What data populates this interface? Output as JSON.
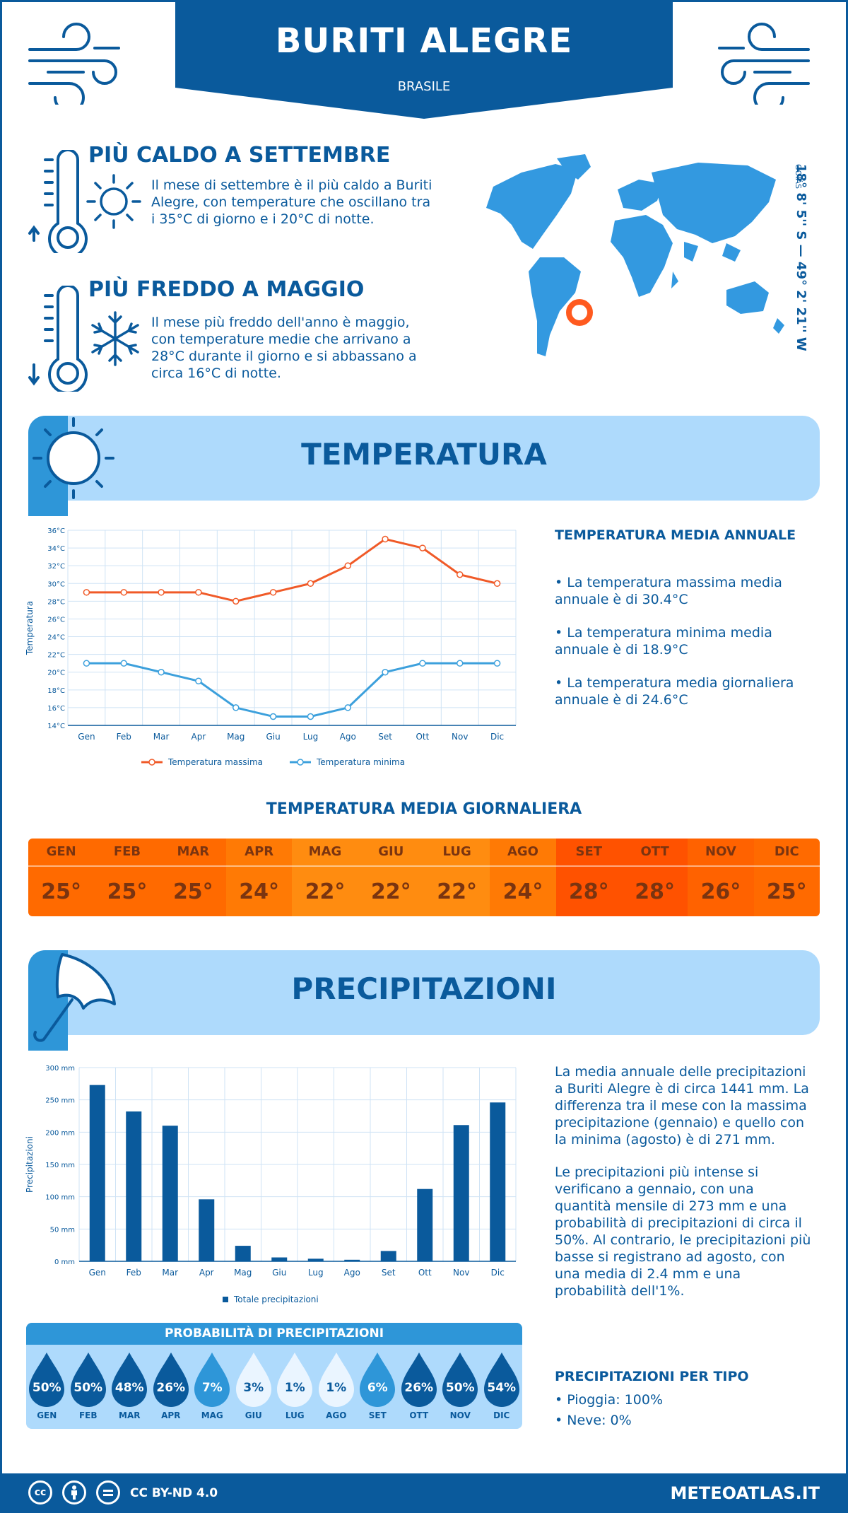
{
  "header": {
    "city": "BURITI ALEGRE",
    "country": "BRASILE"
  },
  "coords": {
    "text": "18° 8' 5'' S — 49° 2' 21'' W",
    "region": "GOIÁS"
  },
  "warmest": {
    "title": "PIÙ CALDO A SETTEMBRE",
    "text": "Il mese di settembre è il più caldo a Buriti Alegre, con temperature che oscillano tra i 35°C di giorno e i 20°C di notte."
  },
  "coldest": {
    "title": "PIÙ FREDDO A MAGGIO",
    "text": "Il mese più freddo dell'anno è maggio, con temperature medie che arrivano a 28°C durante il giorno e si abbassano a circa 16°C di notte."
  },
  "temperature": {
    "section_title": "TEMPERATURA",
    "annual_title": "TEMPERATURA MEDIA ANNUALE",
    "bullets": [
      "• La temperatura massima media annuale è di 30.4°C",
      "• La temperatura minima media annuale è di 18.9°C",
      "• La temperatura media giornaliera annuale è di 24.6°C"
    ],
    "daily_title": "TEMPERATURA MEDIA GIORNALIERA",
    "daily": [
      {
        "m": "GEN",
        "v": "25°",
        "c": "#ff6a00"
      },
      {
        "m": "FEB",
        "v": "25°",
        "c": "#ff6a00"
      },
      {
        "m": "MAR",
        "v": "25°",
        "c": "#ff6a00"
      },
      {
        "m": "APR",
        "v": "24°",
        "c": "#ff7a05"
      },
      {
        "m": "MAG",
        "v": "22°",
        "c": "#ff8c10"
      },
      {
        "m": "GIU",
        "v": "22°",
        "c": "#ff8c10"
      },
      {
        "m": "LUG",
        "v": "22°",
        "c": "#ff8c10"
      },
      {
        "m": "AGO",
        "v": "24°",
        "c": "#ff7a05"
      },
      {
        "m": "SET",
        "v": "28°",
        "c": "#ff5200"
      },
      {
        "m": "OTT",
        "v": "28°",
        "c": "#ff5200"
      },
      {
        "m": "NOV",
        "v": "26°",
        "c": "#ff6200"
      },
      {
        "m": "DIC",
        "v": "25°",
        "c": "#ff6a00"
      }
    ]
  },
  "precipitation": {
    "section_title": "PRECIPITAZIONI",
    "p1": "La media annuale delle precipitazioni a Buriti Alegre è di circa 1441 mm. La differenza tra il mese con la massima precipitazione (gennaio) e quello con la minima (agosto) è di 271 mm.",
    "p2": "Le precipitazioni più intense si verificano a gennaio, con una quantità mensile di 273 mm e una probabilità di precipitazioni di circa il 50%. Al contrario, le precipitazioni più basse si registrano ad agosto, con una media di 2.4 mm e una probabilità dell'1%.",
    "prob_title": "PROBABILITÀ DI PRECIPITAZIONI",
    "prob": [
      {
        "m": "GEN",
        "v": "50%",
        "p": 50
      },
      {
        "m": "FEB",
        "v": "50%",
        "p": 50
      },
      {
        "m": "MAR",
        "v": "48%",
        "p": 48
      },
      {
        "m": "APR",
        "v": "26%",
        "p": 26
      },
      {
        "m": "MAG",
        "v": "7%",
        "p": 7
      },
      {
        "m": "GIU",
        "v": "3%",
        "p": 3
      },
      {
        "m": "LUG",
        "v": "1%",
        "p": 1
      },
      {
        "m": "AGO",
        "v": "1%",
        "p": 1
      },
      {
        "m": "SET",
        "v": "6%",
        "p": 6
      },
      {
        "m": "OTT",
        "v": "26%",
        "p": 26
      },
      {
        "m": "NOV",
        "v": "50%",
        "p": 50
      },
      {
        "m": "DIC",
        "v": "54%",
        "p": 54
      }
    ],
    "type_title": "PRECIPITAZIONI PER TIPO",
    "types": [
      "• Pioggia: 100%",
      "• Neve: 0%"
    ]
  },
  "chart_data": [
    {
      "type": "line",
      "categories": [
        "Gen",
        "Feb",
        "Mar",
        "Apr",
        "Mag",
        "Giu",
        "Lug",
        "Ago",
        "Set",
        "Ott",
        "Nov",
        "Dic"
      ],
      "series": [
        {
          "name": "Temperatura massima",
          "color": "#f05a28",
          "values": [
            29,
            29,
            29,
            29,
            28,
            29,
            30,
            32,
            35,
            34,
            31,
            30
          ]
        },
        {
          "name": "Temperatura minima",
          "color": "#3ca0dc",
          "values": [
            21,
            21,
            20,
            19,
            16,
            15,
            15,
            16,
            20,
            21,
            21,
            21
          ]
        }
      ],
      "ylabel": "Temperatura",
      "ylim": [
        14,
        36
      ],
      "yticks": [
        "14°C",
        "16°C",
        "18°C",
        "20°C",
        "22°C",
        "24°C",
        "26°C",
        "28°C",
        "30°C",
        "32°C",
        "34°C",
        "36°C"
      ],
      "grid": true,
      "legend": "bottom"
    },
    {
      "type": "bar",
      "categories": [
        "Gen",
        "Feb",
        "Mar",
        "Apr",
        "Mag",
        "Giu",
        "Lug",
        "Ago",
        "Set",
        "Ott",
        "Nov",
        "Dic"
      ],
      "series": [
        {
          "name": "Totale precipitazioni",
          "color": "#0a5a9c",
          "values": [
            273,
            232,
            210,
            96,
            24,
            6,
            4,
            2.4,
            16,
            112,
            211,
            246
          ]
        }
      ],
      "ylabel": "Precipitazioni",
      "ylim": [
        0,
        300
      ],
      "yticks": [
        "0 mm",
        "50 mm",
        "100 mm",
        "150 mm",
        "200 mm",
        "250 mm",
        "300 mm"
      ],
      "grid": true,
      "legend": "bottom"
    }
  ],
  "footer": {
    "license": "CC BY-ND 4.0",
    "site": "METEOATLAS.IT"
  }
}
